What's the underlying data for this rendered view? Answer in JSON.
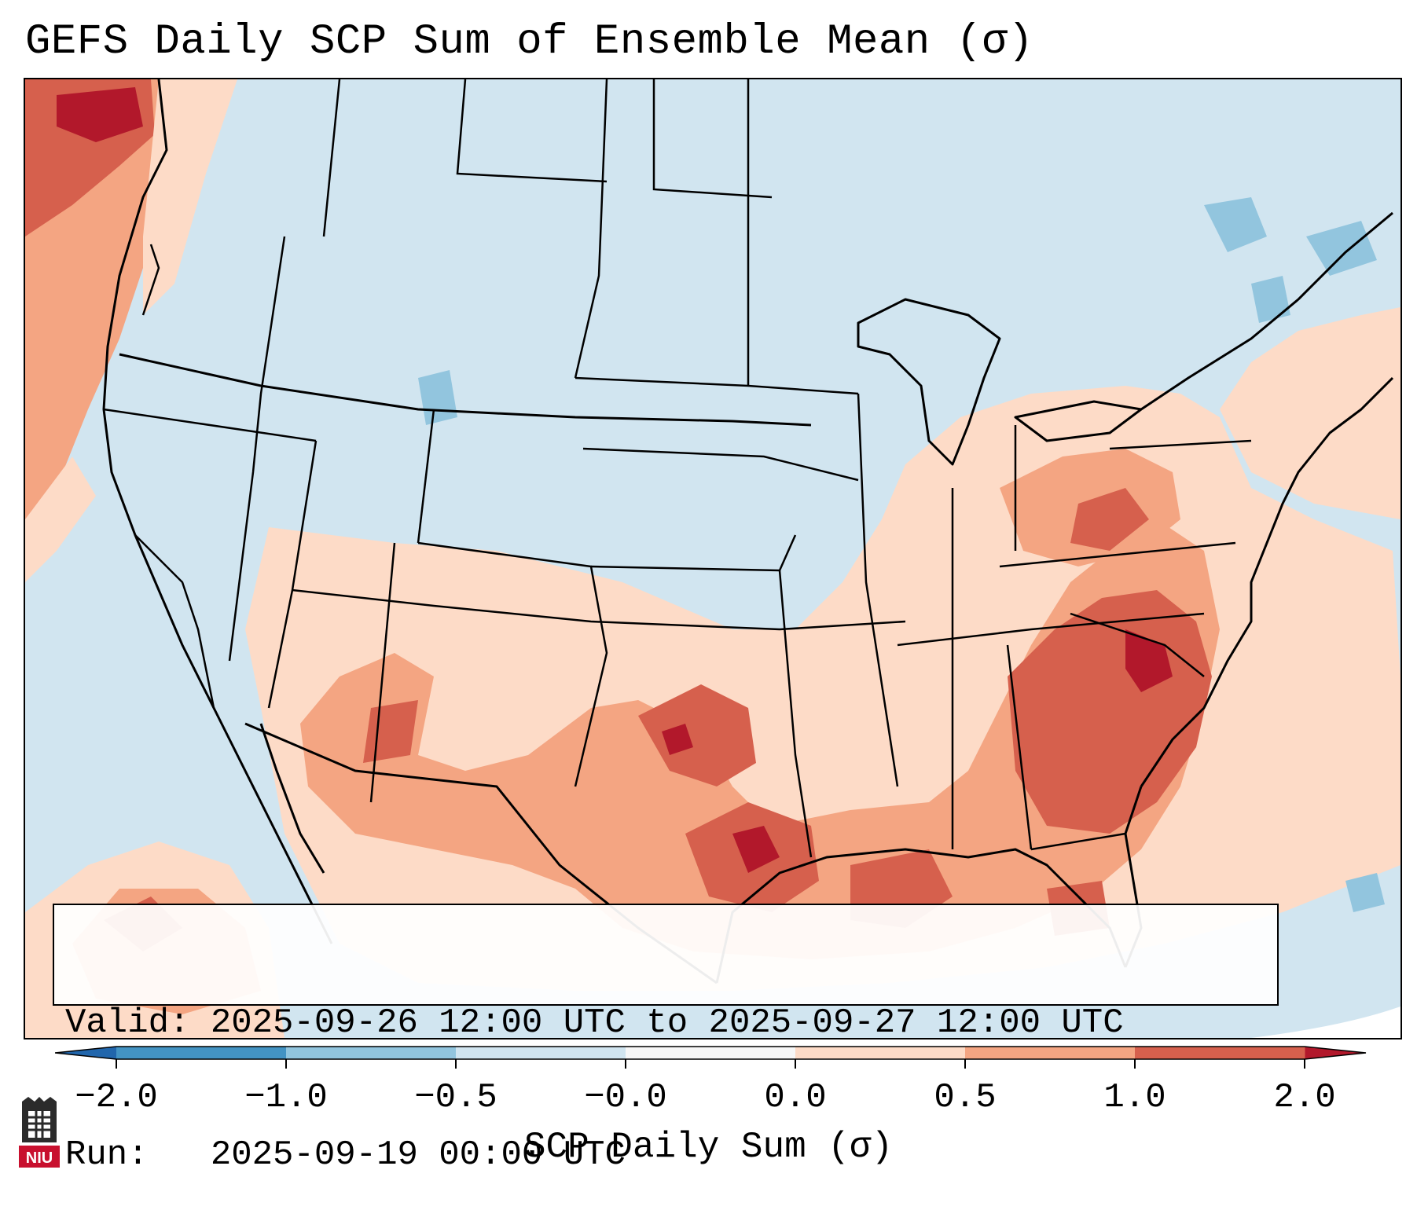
{
  "title": "GEFS Daily SCP Sum of Ensemble Mean (σ)",
  "valid_label": "Valid: 2025-09-26 12:00 UTC to 2025-09-27 12:00 UTC",
  "run_label": "Run:   2025-09-19 00:00 UTC",
  "colorbar": {
    "label": "SCP Daily Sum (σ)",
    "ticks": [
      "−2.0",
      "−1.0",
      "−0.5",
      "−0.0",
      "0.0",
      "0.5",
      "1.0",
      "2.0"
    ],
    "colors": [
      "#4393c3",
      "#92c5de",
      "#d1e5f0",
      "#f7f7f7",
      "#fddbc7",
      "#f4a582",
      "#d6604d"
    ],
    "extend_low_color": "#2166ac",
    "extend_high_color": "#b2182b"
  },
  "logo": {
    "text": "NIU",
    "color": "#c8102e"
  },
  "map": {
    "region": "CONUS",
    "ocean_color": "#d1e5f0",
    "line_color": "#000000"
  }
}
